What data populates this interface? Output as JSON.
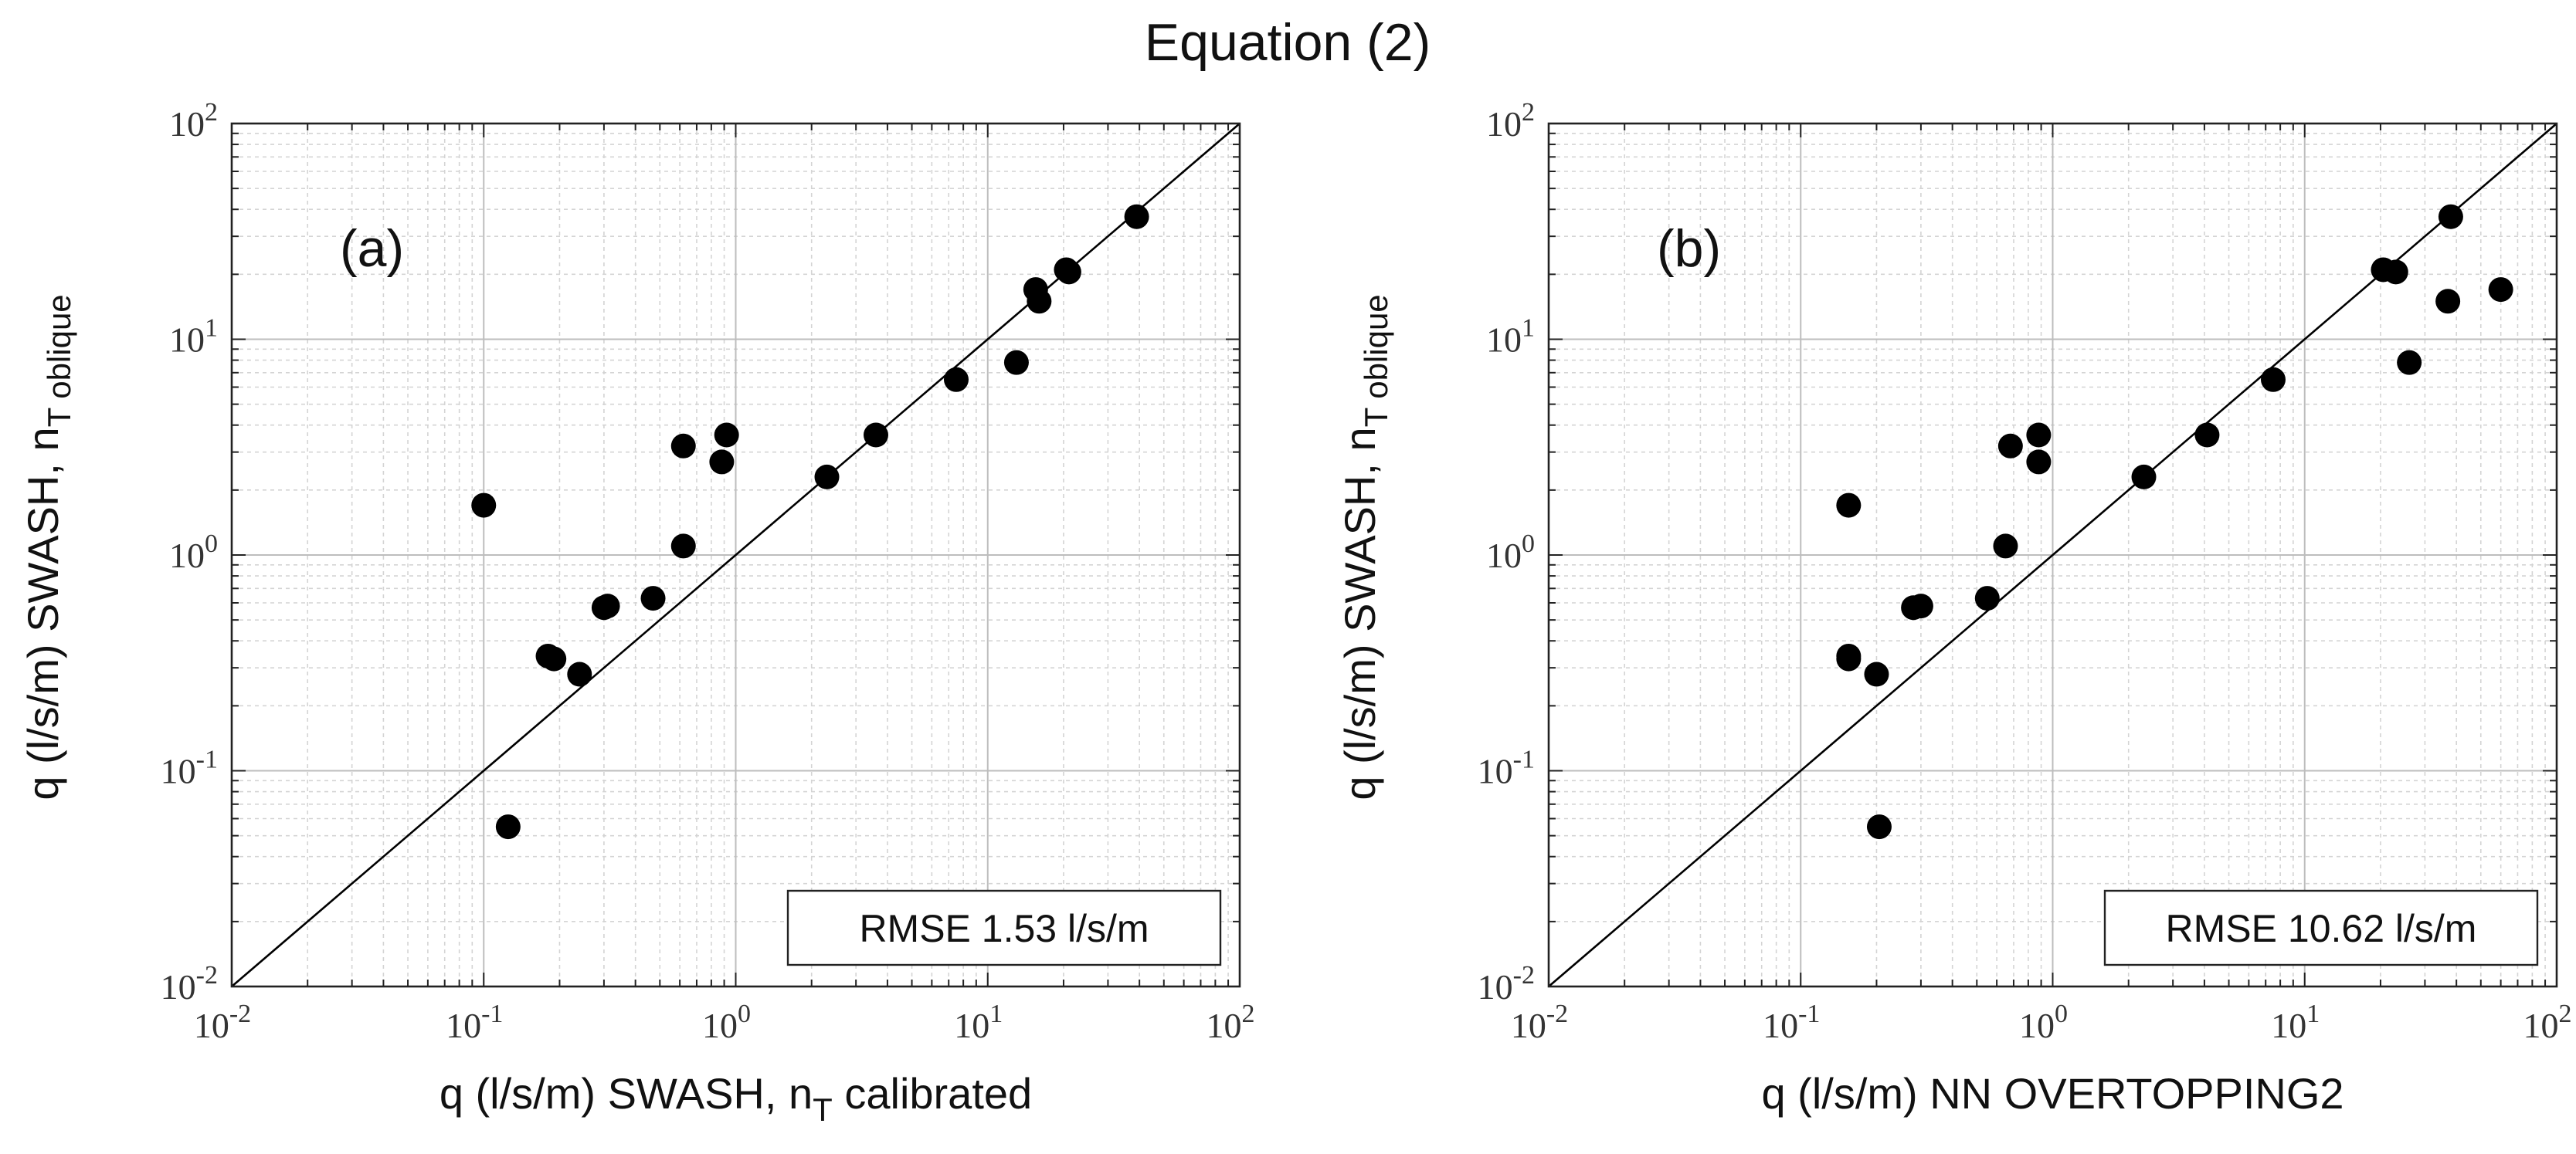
{
  "figure_title": "Equation (2)",
  "chart_data": [
    {
      "type": "scatter",
      "panel_label": "(a)",
      "xlabel_main": "q (l/s/m) SWASH, n",
      "xlabel_sub": "T",
      "xlabel_tail": " calibrated",
      "ylabel_main": "q (l/s/m) SWASH, n",
      "ylabel_sub": "T oblique",
      "xscale": "log",
      "yscale": "log",
      "xlim": [
        0.01,
        100
      ],
      "ylim": [
        0.01,
        100
      ],
      "grid": true,
      "reference_line": "1:1",
      "annotation": "RMSE 1.53 l/s/m",
      "ticks": [
        {
          "base": "10",
          "exp": "-2"
        },
        {
          "base": "10",
          "exp": "-1"
        },
        {
          "base": "10",
          "exp": "0"
        },
        {
          "base": "10",
          "exp": "1"
        },
        {
          "base": "10",
          "exp": "2"
        }
      ],
      "x": [
        39,
        15.5,
        16,
        20.5,
        21,
        13,
        7.5,
        3.6,
        2.3,
        0.92,
        0.88,
        0.62,
        0.62,
        0.47,
        0.31,
        0.3,
        0.19,
        0.18,
        0.24,
        0.1,
        0.125
      ],
      "y": [
        37,
        17,
        15,
        21,
        20.5,
        7.8,
        6.5,
        3.6,
        2.3,
        3.6,
        2.7,
        3.2,
        1.1,
        0.63,
        0.58,
        0.57,
        0.33,
        0.34,
        0.28,
        1.7,
        0.055
      ]
    },
    {
      "type": "scatter",
      "panel_label": "(b)",
      "xlabel_main": "q (l/s/m) NN OVERTOPPING2",
      "xlabel_sub": "",
      "xlabel_tail": "",
      "ylabel_main": "q (l/s/m) SWASH, n",
      "ylabel_sub": "T oblique",
      "xscale": "log",
      "yscale": "log",
      "xlim": [
        0.01,
        100
      ],
      "ylim": [
        0.01,
        100
      ],
      "grid": true,
      "reference_line": "1:1",
      "annotation": "RMSE 10.62 l/s/m",
      "ticks": [
        {
          "base": "10",
          "exp": "-2"
        },
        {
          "base": "10",
          "exp": "-1"
        },
        {
          "base": "10",
          "exp": "0"
        },
        {
          "base": "10",
          "exp": "1"
        },
        {
          "base": "10",
          "exp": "2"
        }
      ],
      "x": [
        38,
        20.5,
        23,
        37,
        60,
        26,
        7.5,
        4.1,
        2.3,
        0.88,
        0.88,
        0.68,
        0.65,
        0.55,
        0.3,
        0.28,
        0.155,
        0.155,
        0.2,
        0.155,
        0.205
      ],
      "y": [
        37,
        21,
        20.5,
        15,
        17,
        7.8,
        6.5,
        3.6,
        2.3,
        3.6,
        2.7,
        3.2,
        1.1,
        0.63,
        0.58,
        0.57,
        0.33,
        0.34,
        0.28,
        1.7,
        0.055
      ]
    }
  ]
}
